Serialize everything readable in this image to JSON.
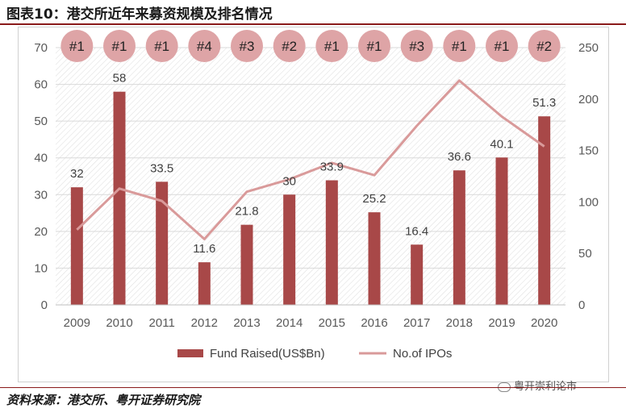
{
  "header": {
    "title": "图表10：港交所近年来募资规模及排名情况"
  },
  "footer": {
    "source": "资料来源：港交所、粤开证券研究院",
    "watermark": "粤开崇利论市"
  },
  "colors": {
    "bar": "#a84848",
    "line": "#d99a9a",
    "badge": "#dea4a6",
    "axis": "#595959"
  },
  "chart_data": {
    "type": "bar",
    "categories": [
      "2009",
      "2010",
      "2011",
      "2012",
      "2013",
      "2014",
      "2015",
      "2016",
      "2017",
      "2018",
      "2019",
      "2020"
    ],
    "series": [
      {
        "name": "Fund Raised(US$Bn)",
        "type": "bar",
        "axis": "left",
        "values": [
          32,
          58,
          33.5,
          11.6,
          21.8,
          30,
          33.9,
          25.2,
          16.4,
          36.6,
          40.1,
          51.3
        ],
        "labels": [
          "32",
          "58",
          "33.5",
          "11.6",
          "21.8",
          "30",
          "33.9",
          "25.2",
          "16.4",
          "36.6",
          "40.1",
          "51.3"
        ]
      },
      {
        "name": "No.of IPOs",
        "type": "line",
        "axis": "right",
        "values": [
          73,
          113,
          101,
          64,
          110,
          122,
          138,
          126,
          174,
          218,
          183,
          154
        ]
      }
    ],
    "ranks": [
      "#1",
      "#1",
      "#1",
      "#4",
      "#3",
      "#2",
      "#1",
      "#1",
      "#3",
      "#1",
      "#1",
      "#2"
    ],
    "y_left": {
      "lim": [
        0,
        70
      ],
      "ticks": [
        "0",
        "10",
        "20",
        "30",
        "40",
        "50",
        "60",
        "70"
      ]
    },
    "y_right": {
      "lim": [
        0,
        250
      ],
      "ticks": [
        "0",
        "50",
        "100",
        "150",
        "200",
        "250"
      ]
    },
    "legend_position": "bottom",
    "grid": "diagonal hatch background"
  }
}
